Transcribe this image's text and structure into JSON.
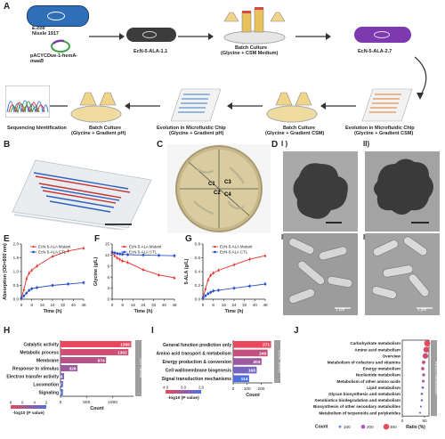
{
  "panelA": {
    "label": "A",
    "ecoli_line1": "E.coli",
    "ecoli_line2": "Nissle 1917",
    "plasmid_line1": "pACYCDue-1-hemA-",
    "plasmid_line2": "maeB",
    "strain1": "EcN-5-ALA-1.1",
    "batch1_line1": "Batch Culture",
    "batch1_line2": "(Glycine + CSM Medium)",
    "strain2": "EcN-5-ALA-2.7",
    "evo_csm_line1": "Evolution in Microfluidic Chip",
    "evo_csm_line2": "(Glycine + Gradient CSM)",
    "batch_csm_line1": "Batch Culture",
    "batch_csm_line2": "(Glycine + Gradient CSM)",
    "evo_ph_line1": "Evolution in Microfluidic Chip",
    "evo_ph_line2": "(Glycine + Gradient pH)",
    "batch_ph_line1": "Batch Culture",
    "batch_ph_line2": "(Glycine + Gradient pH)",
    "seq": "Sequencing Identification"
  },
  "panelB": {
    "label": "B"
  },
  "panelC": {
    "label": "C",
    "sectors": [
      "C1",
      "C2",
      "C3",
      "C4"
    ]
  },
  "panelD": {
    "label": "D",
    "sub": [
      "I )",
      "II)",
      "III)",
      "IV)"
    ],
    "scale": "1 μm"
  },
  "panelE": {
    "label": "E",
    "ylabel": "Absorption (OD=600 nm)",
    "xlabel": "Time (h)",
    "legend": [
      "EcN-5-ALA Mutant",
      "EcN-5-ALA CTL"
    ],
    "xticks": [
      "0",
      "8",
      "16",
      "24",
      "32",
      "40",
      "48"
    ],
    "yticks": [
      "0.0",
      "0.5",
      "1.0",
      "1.5",
      "2.0"
    ]
  },
  "panelF": {
    "label": "F",
    "ylabel": "Glycine (g/L)",
    "xlabel": "Time (h)",
    "legend": [
      "EcN-5-ALA Mutant",
      "EcN-5-ALA CTL"
    ],
    "xticks": [
      "0",
      "8",
      "16",
      "24",
      "32",
      "40",
      "48"
    ],
    "yticks": [
      "0",
      "3",
      "6",
      "9",
      "12",
      "15"
    ]
  },
  "panelG": {
    "label": "G",
    "ylabel": "5-ALA (g/L)",
    "xlabel": "Time (h)",
    "legend": [
      "EcN-5-ALA Mutant",
      "EcN-5-ALA CTL"
    ],
    "xticks": [
      "0",
      "8",
      "16",
      "24",
      "32",
      "40",
      "48"
    ],
    "yticks": [
      "0.0",
      "0.2",
      "0.4",
      "0.6",
      "0.8"
    ]
  },
  "panelH": {
    "label": "H",
    "side": "GO Terms",
    "xlabel": "Count",
    "xticks": [
      "0",
      "500",
      "1000"
    ],
    "scale_label": "-log10 (P value)",
    "scale_ticks": [
      "8",
      "6",
      "4",
      "2"
    ],
    "rows": [
      {
        "name": "Catalytic activity",
        "value": "1356"
      },
      {
        "name": "Metabolic process",
        "value": "1302"
      },
      {
        "name": "Membrane",
        "value": "874"
      },
      {
        "name": "Response to stimulus",
        "value": "326"
      },
      {
        "name": "Electron transfer activity",
        "value": "68"
      },
      {
        "name": "Locomotion",
        "value": "47"
      },
      {
        "name": "Signaling",
        "value": "46"
      }
    ]
  },
  "panelI": {
    "label": "I",
    "side": "COG Terms",
    "xlabel": "Count",
    "xticks": [
      "0",
      "100",
      "200"
    ],
    "scale_label": "-log10 (P value)",
    "scale_ticks": [
      "4.0",
      "3.0",
      "2.0"
    ],
    "rows": [
      {
        "name": "General function prediction only",
        "value": "271"
      },
      {
        "name": "Amino acid transport & metabolism",
        "value": "246"
      },
      {
        "name": "Energy production & conversion",
        "value": "203"
      },
      {
        "name": "Cell wall/membrane biogenesis",
        "value": "168"
      },
      {
        "name": "Signal transduction mechanisms",
        "value": "114"
      }
    ]
  },
  "panelJ": {
    "label": "J",
    "side": "KEGG Metabolism",
    "xlabel": "Ratio (%)",
    "xticks": [
      "0",
      "50"
    ],
    "count_label": "Count",
    "count_ticks": [
      "100",
      "200",
      "300"
    ],
    "rows": [
      "Carbohydrate metabolism",
      "Amino acid metabolism",
      "Overview",
      "Metabolism of cofactors and vitamins",
      "Energy metabolism",
      "Nucleotide metabolism",
      "Metabolism of other amino acids",
      "Lipid metabolism",
      "Glycan biosynthesis and metabolism",
      "Xenobiotics biodegradation and metabolism",
      "Biosynthesis of other secondary metabolites",
      "Metabolism of terpenoids and polyketides"
    ]
  },
  "chart_data": [
    {
      "type": "line",
      "title": "",
      "xlabel": "Time (h)",
      "ylabel": "Absorption (OD=600 nm)",
      "ylim": [
        0,
        2.0
      ],
      "x": [
        0,
        2,
        4,
        6,
        8,
        12,
        24,
        36,
        48
      ],
      "series": [
        {
          "name": "EcN-5-ALA Mutant",
          "values": [
            0.05,
            0.35,
            0.75,
            0.95,
            1.05,
            1.2,
            1.55,
            1.75,
            1.85
          ]
        },
        {
          "name": "EcN-5-ALA CTL",
          "values": [
            0.05,
            0.12,
            0.22,
            0.32,
            0.38,
            0.42,
            0.5,
            0.55,
            0.6
          ]
        }
      ]
    },
    {
      "type": "line",
      "title": "",
      "xlabel": "Time (h)",
      "ylabel": "Glycine (g/L)",
      "ylim": [
        0,
        15
      ],
      "x": [
        0,
        2,
        4,
        6,
        8,
        12,
        24,
        36,
        48
      ],
      "series": [
        {
          "name": "EcN-5-ALA Mutant",
          "values": [
            12.6,
            11.8,
            11.2,
            10.8,
            10.4,
            10.0,
            8.0,
            6.6,
            5.8
          ]
        },
        {
          "name": "EcN-5-ALA CTL",
          "values": [
            12.8,
            12.6,
            12.4,
            12.3,
            12.2,
            12.1,
            12.0,
            11.9,
            11.8
          ]
        }
      ]
    },
    {
      "type": "line",
      "title": "",
      "xlabel": "Time (h)",
      "ylabel": "5-ALA (g/L)",
      "ylim": [
        0,
        0.8
      ],
      "x": [
        0,
        2,
        4,
        6,
        8,
        12,
        24,
        36,
        48
      ],
      "series": [
        {
          "name": "EcN-5-ALA Mutant",
          "values": [
            0.02,
            0.15,
            0.28,
            0.35,
            0.38,
            0.42,
            0.5,
            0.58,
            0.63
          ]
        },
        {
          "name": "EcN-5-ALA CTL",
          "values": [
            0.02,
            0.05,
            0.08,
            0.1,
            0.12,
            0.13,
            0.16,
            0.19,
            0.22
          ]
        }
      ]
    },
    {
      "type": "bar",
      "title": "",
      "xlabel": "Count",
      "ylabel": "",
      "categories": [
        "Catalytic activity",
        "Metabolic process",
        "Membrane",
        "Response to stimulus",
        "Electron transfer activity",
        "Locomotion",
        "Signaling"
      ],
      "values": [
        1356,
        1302,
        874,
        326,
        68,
        47,
        46
      ],
      "xlim": [
        0,
        1400
      ]
    },
    {
      "type": "bar",
      "title": "",
      "xlabel": "Count",
      "ylabel": "",
      "categories": [
        "General function prediction only",
        "Amino acid transport & metabolism",
        "Energy production & conversion",
        "Cell wall/membrane biogenesis",
        "Signal transduction mechanisms"
      ],
      "values": [
        271,
        246,
        203,
        168,
        114
      ],
      "xlim": [
        0,
        280
      ]
    },
    {
      "type": "scatter",
      "title": "",
      "xlabel": "Ratio (%)",
      "ylabel": "",
      "categories": [
        "Carbohydrate metabolism",
        "Amino acid metabolism",
        "Overview",
        "Metabolism of cofactors and vitamins",
        "Energy metabolism",
        "Nucleotide metabolism",
        "Metabolism of other amino acids",
        "Lipid metabolism",
        "Glycan biosynthesis and metabolism",
        "Xenobiotics biodegradation and metabolism",
        "Biosynthesis of other secondary metabolites",
        "Metabolism of terpenoids and polyketides"
      ],
      "values": [
        56,
        54,
        52,
        48,
        46,
        48,
        47,
        46,
        44,
        44,
        42,
        40
      ],
      "counts": [
        340,
        320,
        300,
        150,
        140,
        120,
        90,
        80,
        70,
        60,
        40,
        30
      ],
      "xlim": [
        0,
        60
      ]
    }
  ]
}
